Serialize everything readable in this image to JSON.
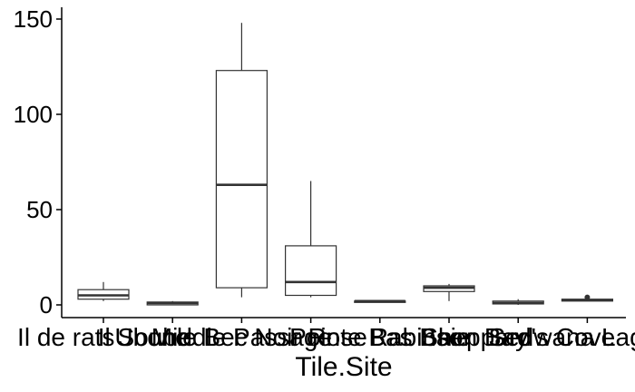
{
  "chart_data": {
    "type": "boxplot",
    "xlabel": "Tile.Site",
    "ylabel": "",
    "ylim": [
      -7,
      156
    ],
    "yticks": [
      0,
      50,
      100,
      150
    ],
    "grid": false,
    "legend": "none",
    "categories": [
      "Il de ratsUbone",
      "Il Souble Bec",
      "Middle Passage",
      "Noir Rose",
      "Pointe Bas Baie",
      "Rabinson Bay",
      "Sheppard's Cove",
      "Sedwana Lagoon"
    ],
    "boxes": [
      {
        "whisker_low": 2,
        "q1": 3,
        "median": 5,
        "q3": 8,
        "whisker_high": 12,
        "outliers": []
      },
      {
        "whisker_low": 0,
        "q1": 0,
        "median": 1,
        "q3": 1.5,
        "whisker_high": 2,
        "outliers": []
      },
      {
        "whisker_low": 4,
        "q1": 9,
        "median": 63,
        "q3": 123,
        "whisker_high": 148,
        "outliers": []
      },
      {
        "whisker_low": 4,
        "q1": 5,
        "median": 12,
        "q3": 31,
        "whisker_high": 65,
        "outliers": []
      },
      {
        "whisker_low": 2,
        "q1": 2,
        "median": 2,
        "q3": 2,
        "whisker_high": 2,
        "outliers": []
      },
      {
        "whisker_low": 2,
        "q1": 7,
        "median": 9,
        "q3": 10,
        "whisker_high": 11,
        "outliers": []
      },
      {
        "whisker_low": 0,
        "q1": 0.5,
        "median": 1,
        "q3": 2,
        "whisker_high": 3,
        "outliers": []
      },
      {
        "whisker_low": 2,
        "q1": 2,
        "median": 2.5,
        "q3": 3,
        "whisker_high": 3,
        "outliers": [
          4
        ]
      }
    ]
  }
}
